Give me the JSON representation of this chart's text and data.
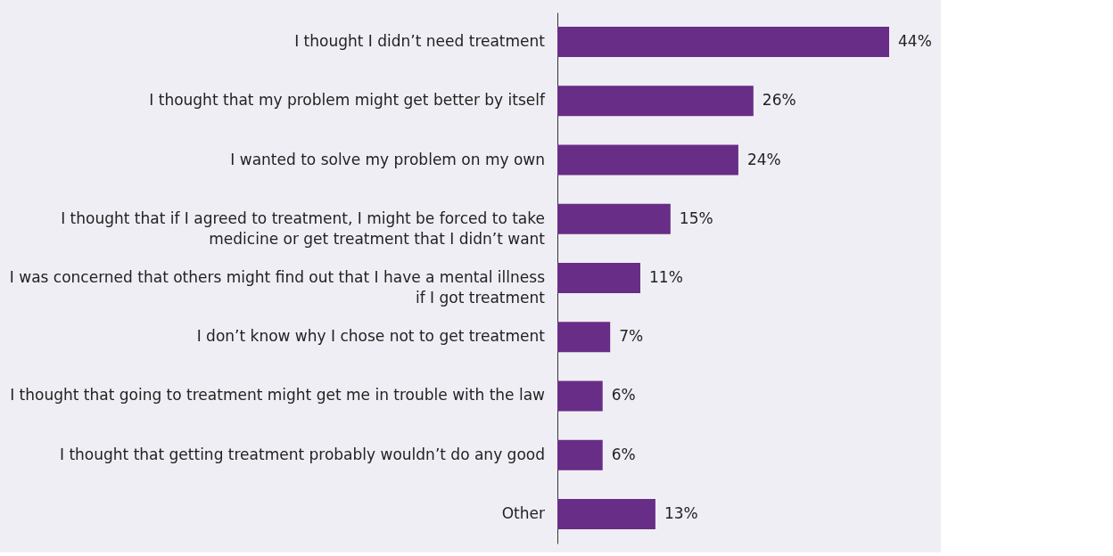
{
  "chart_data": {
    "type": "bar",
    "orientation": "horizontal",
    "color": "#682d86",
    "categories": [
      "I thought I didn’t need treatment",
      "I thought that my problem might get better by itself",
      "I wanted to solve my problem on my own",
      "I thought that if I agreed to treatment, I might be forced to take medicine or get treatment that I didn’t want",
      "I was concerned that others might find out that I have a mental illness if I got treatment",
      "I don’t know why I chose not to get treatment",
      "I thought that going to treatment might get me in trouble with the law",
      "I thought that getting treatment probably wouldn’t do any good",
      "Other"
    ],
    "values": [
      44,
      26,
      24,
      15,
      11,
      7,
      6,
      6,
      13
    ],
    "value_labels": [
      "44%",
      "26%",
      "24%",
      "15%",
      "11%",
      "7%",
      "6%",
      "6%",
      "13%"
    ]
  }
}
